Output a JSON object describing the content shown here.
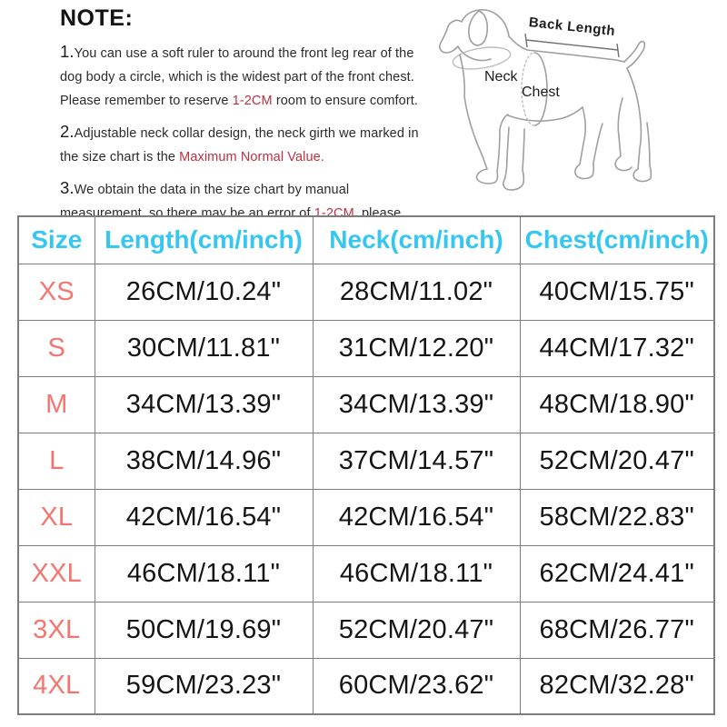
{
  "colors": {
    "header_text": "#35c7f2",
    "size_label": "#f4756f",
    "note_highlight": "#c02f3f",
    "table_border": "#7d7d7d",
    "dog_outline": "#9f9f9f"
  },
  "notes": {
    "title": "NOTE:",
    "items": [
      {
        "number": "1.",
        "segments": [
          {
            "text": "You can use a soft ruler to around the front leg rear of the dog body a circle, which is the widest part of the front chest. Please remember to reserve "
          },
          {
            "text": "1-2CM",
            "red": true
          },
          {
            "text": " room to ensure comfort."
          }
        ]
      },
      {
        "number": "2.",
        "segments": [
          {
            "text": "Adjustable neck collar design, the neck girth we marked in the size chart is the "
          },
          {
            "text": "Maximum Normal Value.",
            "red": true
          }
        ]
      },
      {
        "number": "3.",
        "segments": [
          {
            "text": "We obtain the data in the size chart by manual measurement, so there may be an error of "
          },
          {
            "text": "1-2CM",
            "red": true
          },
          {
            "text": ", please understand."
          }
        ]
      }
    ]
  },
  "diagram": {
    "back_length_label": "Back Length",
    "neck_label": "Neck",
    "chest_label": "Chest"
  },
  "table": {
    "headers": [
      "Size",
      "Length(cm/inch)",
      "Neck(cm/inch)",
      "Chest(cm/inch)"
    ],
    "rows": [
      {
        "size": "XS",
        "length": "26CM/10.24\"",
        "neck": "28CM/11.02\"",
        "chest": "40CM/15.75\""
      },
      {
        "size": "S",
        "length": "30CM/11.81\"",
        "neck": "31CM/12.20\"",
        "chest": "44CM/17.32\""
      },
      {
        "size": "M",
        "length": "34CM/13.39\"",
        "neck": "34CM/13.39\"",
        "chest": "48CM/18.90\""
      },
      {
        "size": "L",
        "length": "38CM/14.96\"",
        "neck": "37CM/14.57\"",
        "chest": "52CM/20.47\""
      },
      {
        "size": "XL",
        "length": "42CM/16.54\"",
        "neck": "42CM/16.54\"",
        "chest": "58CM/22.83\""
      },
      {
        "size": "XXL",
        "length": "46CM/18.11\"",
        "neck": "46CM/18.11\"",
        "chest": "62CM/24.41\""
      },
      {
        "size": "3XL",
        "length": "50CM/19.69\"",
        "neck": "52CM/20.47\"",
        "chest": "68CM/26.77\""
      },
      {
        "size": "4XL",
        "length": "59CM/23.23\"",
        "neck": "60CM/23.62\"",
        "chest": "82CM/32.28\""
      }
    ]
  }
}
